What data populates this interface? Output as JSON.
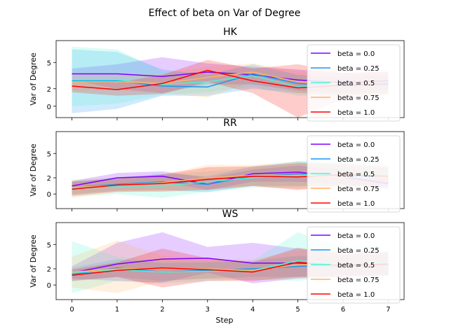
{
  "figure": {
    "title": "Effect of beta on  Var of Degree",
    "xlabel": "Step"
  },
  "chart_data": [
    {
      "type": "line",
      "title": "HK",
      "xlabel": "",
      "ylabel": "Var of Degree",
      "x": [
        0,
        1,
        2,
        3,
        4,
        5,
        6,
        7
      ],
      "xlim": [
        -0.35,
        7.35
      ],
      "ylim": [
        -1.3,
        7.5
      ],
      "yticks": [
        0,
        2,
        5
      ],
      "legend_position": "right",
      "series": [
        {
          "name": "beta = 0.0",
          "color": "#8000ff",
          "values": [
            3.7,
            3.7,
            3.4,
            3.9,
            3.6,
            3.0,
            2.7,
            2.9
          ],
          "lower": [
            3.0,
            2.0,
            1.5,
            2.5,
            2.5,
            1.8,
            1.5,
            1.8
          ],
          "upper": [
            4.3,
            4.8,
            5.6,
            4.9,
            4.5,
            4.2,
            3.8,
            4.0
          ]
        },
        {
          "name": "beta = 0.25",
          "color": "#1996f3",
          "values": [
            2.9,
            2.9,
            2.3,
            2.2,
            3.7,
            2.6,
            2.3,
            2.5
          ],
          "lower": [
            -0.8,
            -0.3,
            1.2,
            1.2,
            2.0,
            1.5,
            1.3,
            1.4
          ],
          "upper": [
            6.5,
            6.2,
            4.2,
            3.6,
            4.8,
            3.6,
            3.3,
            3.5
          ]
        },
        {
          "name": "beta = 0.5",
          "color": "#4df3ce",
          "values": [
            3.0,
            3.0,
            2.5,
            2.8,
            3.5,
            2.2,
            2.4,
            2.6
          ],
          "lower": [
            0.0,
            0.3,
            1.3,
            1.6,
            2.2,
            1.2,
            1.2,
            1.5
          ],
          "upper": [
            6.8,
            6.5,
            4.0,
            3.8,
            4.4,
            3.5,
            3.6,
            3.5
          ]
        },
        {
          "name": "beta = 0.75",
          "color": "#ffb360",
          "values": [
            2.8,
            2.8,
            2.6,
            3.3,
            3.9,
            2.8,
            2.6,
            2.7
          ],
          "lower": [
            1.8,
            1.8,
            1.5,
            1.0,
            2.8,
            1.5,
            1.3,
            1.6
          ],
          "upper": [
            3.8,
            3.8,
            3.7,
            4.5,
            4.9,
            4.0,
            3.8,
            3.9
          ]
        },
        {
          "name": "beta = 1.0",
          "color": "#ff0000",
          "values": [
            2.3,
            1.9,
            2.6,
            4.1,
            2.9,
            2.1,
            2.4,
            2.6
          ],
          "lower": [
            1.6,
            1.2,
            1.4,
            2.8,
            1.5,
            -1.3,
            0.8,
            1.3
          ],
          "upper": [
            3.0,
            2.7,
            3.6,
            5.3,
            4.3,
            4.8,
            3.8,
            3.9
          ]
        }
      ]
    },
    {
      "type": "line",
      "title": "RR",
      "xlabel": "",
      "ylabel": "Var of Degree",
      "x": [
        0,
        1,
        2,
        3,
        4,
        5,
        6,
        7
      ],
      "xlim": [
        -0.35,
        7.35
      ],
      "ylim": [
        -1.8,
        7.7
      ],
      "yticks": [
        0,
        2,
        5
      ],
      "legend_position": "right",
      "series": [
        {
          "name": "beta = 0.0",
          "color": "#8000ff",
          "values": [
            1.0,
            2.0,
            2.2,
            1.2,
            2.5,
            2.7,
            2.1,
            1.3
          ],
          "lower": [
            0.5,
            1.2,
            1.5,
            0.5,
            1.5,
            1.5,
            1.2,
            0.6
          ],
          "upper": [
            1.6,
            2.6,
            2.8,
            2.0,
            3.0,
            3.5,
            3.0,
            2.0
          ]
        },
        {
          "name": "beta = 0.25",
          "color": "#1996f3",
          "values": [
            0.8,
            1.2,
            1.5,
            1.2,
            2.2,
            2.5,
            2.3,
            2.0
          ],
          "lower": [
            0.0,
            0.4,
            0.5,
            0.2,
            1.0,
            1.0,
            1.0,
            0.8
          ],
          "upper": [
            1.6,
            2.0,
            2.5,
            2.2,
            3.4,
            4.0,
            3.6,
            3.2
          ]
        },
        {
          "name": "beta = 0.5",
          "color": "#4df3ce",
          "values": [
            0.7,
            1.0,
            1.0,
            1.5,
            2.0,
            2.3,
            2.6,
            2.2
          ],
          "lower": [
            -0.3,
            0.0,
            -0.5,
            0.3,
            0.8,
            0.8,
            1.2,
            1.0
          ],
          "upper": [
            1.6,
            2.0,
            2.4,
            2.8,
            3.2,
            4.0,
            4.6,
            3.6
          ]
        },
        {
          "name": "beta = 0.75",
          "color": "#ffb360",
          "values": [
            0.8,
            1.1,
            1.4,
            2.0,
            2.3,
            2.3,
            2.1,
            2.0
          ],
          "lower": [
            -0.5,
            0.2,
            0.4,
            0.6,
            1.0,
            0.6,
            0.8,
            0.8
          ],
          "upper": [
            1.8,
            2.0,
            2.4,
            3.6,
            3.6,
            4.0,
            3.4,
            3.3
          ]
        },
        {
          "name": "beta = 1.0",
          "color": "#ff0000",
          "values": [
            0.6,
            1.1,
            1.3,
            1.8,
            2.2,
            2.1,
            2.4,
            2.2
          ],
          "lower": [
            -0.2,
            0.3,
            0.3,
            0.5,
            1.0,
            0.5,
            1.0,
            1.0
          ],
          "upper": [
            1.5,
            1.9,
            2.4,
            3.3,
            3.4,
            3.8,
            3.8,
            3.4
          ]
        }
      ]
    },
    {
      "type": "line",
      "title": "WS",
      "xlabel": "Step",
      "ylabel": "Var of Degree",
      "x": [
        0,
        1,
        2,
        3,
        4,
        5,
        6,
        7
      ],
      "xlim": [
        -0.35,
        7.35
      ],
      "ylim": [
        -1.8,
        7.7
      ],
      "yticks": [
        0,
        2,
        5
      ],
      "legend_position": "right",
      "series": [
        {
          "name": "beta = 0.0",
          "color": "#8000ff",
          "values": [
            1.5,
            2.6,
            3.2,
            3.3,
            2.7,
            2.7,
            2.5,
            2.6
          ],
          "lower": [
            0.8,
            0.5,
            0.3,
            1.5,
            0.2,
            0.8,
            1.0,
            1.2
          ],
          "upper": [
            2.3,
            5.2,
            6.5,
            4.7,
            5.2,
            4.5,
            4.0,
            4.0
          ]
        },
        {
          "name": "beta = 0.25",
          "color": "#1996f3",
          "values": [
            1.3,
            2.1,
            1.6,
            1.8,
            2.0,
            2.3,
            2.4,
            2.5
          ],
          "lower": [
            0.5,
            1.0,
            0.5,
            0.8,
            1.0,
            1.0,
            1.2,
            1.2
          ],
          "upper": [
            2.1,
            3.2,
            2.7,
            2.8,
            3.0,
            3.6,
            3.6,
            3.8
          ]
        },
        {
          "name": "beta = 0.5",
          "color": "#4df3ce",
          "values": [
            1.5,
            1.9,
            1.6,
            1.7,
            1.8,
            3.0,
            2.6,
            2.8
          ],
          "lower": [
            -1.0,
            0.5,
            0.2,
            0.5,
            0.7,
            0.5,
            1.2,
            1.5
          ],
          "upper": [
            5.4,
            3.5,
            3.0,
            3.0,
            3.0,
            6.5,
            4.5,
            4.3
          ]
        },
        {
          "name": "beta = 0.75",
          "color": "#ffb360",
          "values": [
            1.6,
            2.0,
            2.0,
            2.0,
            1.8,
            2.5,
            2.6,
            2.6
          ],
          "lower": [
            -0.3,
            -1.0,
            0.5,
            0.8,
            0.6,
            0.8,
            1.2,
            1.2
          ],
          "upper": [
            3.5,
            5.5,
            3.6,
            3.2,
            3.2,
            4.2,
            4.3,
            4.2
          ]
        },
        {
          "name": "beta = 1.0",
          "color": "#ff0000",
          "values": [
            1.2,
            1.8,
            2.1,
            1.9,
            1.6,
            2.8,
            2.4,
            2.6
          ],
          "lower": [
            0.5,
            1.0,
            -0.3,
            0.5,
            0.5,
            1.0,
            1.0,
            1.2
          ],
          "upper": [
            1.9,
            2.8,
            4.5,
            3.3,
            2.8,
            4.6,
            3.8,
            4.0
          ]
        }
      ]
    }
  ]
}
